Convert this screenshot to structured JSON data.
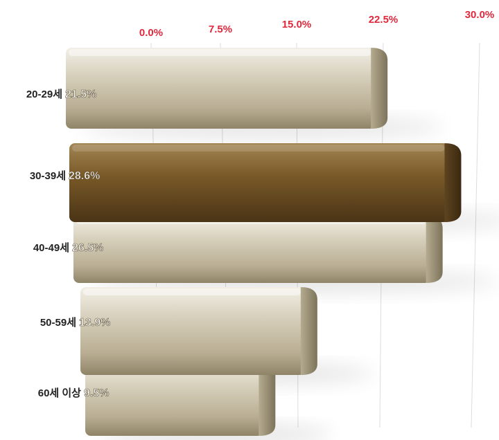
{
  "chart_data": {
    "type": "bar",
    "orientation": "horizontal",
    "categories": [
      "20-29세",
      "30-39세",
      "40-49세",
      "50-59세",
      "60세 이상"
    ],
    "values": [
      21.5,
      28.6,
      26.5,
      13.9,
      9.5
    ],
    "value_labels": [
      "21.5%",
      "28.6%",
      "26.5%",
      "13.9%",
      "9.5%"
    ],
    "highlight_index": 1,
    "xlim": [
      0,
      30
    ],
    "x_ticks": [
      "0.0%",
      "7.5%",
      "15.0%",
      "22.5%",
      "30.0%"
    ],
    "grid": true,
    "legend": "none",
    "colors": {
      "bar": "#cfc6ae",
      "bar_highlight": "#6b4e22",
      "tick_text": "#e0283c",
      "category_text": "#222222",
      "value_text": "#ffffff"
    }
  }
}
